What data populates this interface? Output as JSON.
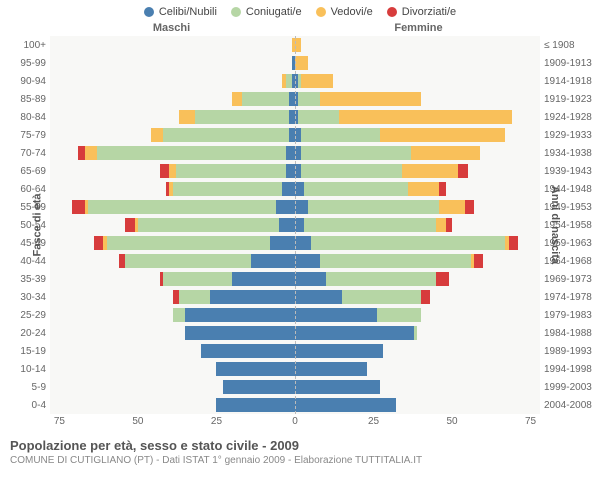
{
  "legend": [
    {
      "label": "Celibi/Nubili",
      "color": "#4a7fb0"
    },
    {
      "label": "Coniugati/e",
      "color": "#b6d6a5"
    },
    {
      "label": "Vedovi/e",
      "color": "#f9c05a"
    },
    {
      "label": "Divorziati/e",
      "color": "#d73c3c"
    }
  ],
  "headers": {
    "male": "Maschi",
    "female": "Femmine"
  },
  "y_axis_left_label": "Fasce di età",
  "y_axis_right_label": "Anni di nascita",
  "age_labels": [
    "100+",
    "95-99",
    "90-94",
    "85-89",
    "80-84",
    "75-79",
    "70-74",
    "65-69",
    "60-64",
    "55-59",
    "50-54",
    "45-49",
    "40-44",
    "35-39",
    "30-34",
    "25-29",
    "20-24",
    "15-19",
    "10-14",
    "5-9",
    "0-4"
  ],
  "birth_labels": [
    "≤ 1908",
    "1909-1913",
    "1914-1918",
    "1919-1923",
    "1924-1928",
    "1929-1933",
    "1934-1938",
    "1939-1943",
    "1944-1948",
    "1949-1953",
    "1954-1958",
    "1959-1963",
    "1964-1968",
    "1969-1973",
    "1974-1978",
    "1979-1983",
    "1984-1988",
    "1989-1993",
    "1994-1998",
    "1999-2003",
    "2004-2008"
  ],
  "x_ticks": [
    75,
    50,
    25,
    0,
    25,
    50,
    75
  ],
  "x_max": 78,
  "rows": [
    {
      "m": {
        "c": 0,
        "cg": 0,
        "v": 1,
        "d": 0
      },
      "f": {
        "c": 0,
        "cg": 0,
        "v": 2,
        "d": 0
      }
    },
    {
      "m": {
        "c": 1,
        "cg": 0,
        "v": 0,
        "d": 0
      },
      "f": {
        "c": 0,
        "cg": 0,
        "v": 4,
        "d": 0
      }
    },
    {
      "m": {
        "c": 1,
        "cg": 2,
        "v": 1,
        "d": 0
      },
      "f": {
        "c": 1,
        "cg": 1,
        "v": 10,
        "d": 0
      }
    },
    {
      "m": {
        "c": 2,
        "cg": 15,
        "v": 3,
        "d": 0
      },
      "f": {
        "c": 1,
        "cg": 7,
        "v": 32,
        "d": 0
      }
    },
    {
      "m": {
        "c": 2,
        "cg": 30,
        "v": 5,
        "d": 0
      },
      "f": {
        "c": 1,
        "cg": 13,
        "v": 55,
        "d": 0
      }
    },
    {
      "m": {
        "c": 2,
        "cg": 40,
        "v": 4,
        "d": 0
      },
      "f": {
        "c": 2,
        "cg": 25,
        "v": 40,
        "d": 0
      }
    },
    {
      "m": {
        "c": 3,
        "cg": 60,
        "v": 4,
        "d": 2
      },
      "f": {
        "c": 2,
        "cg": 35,
        "v": 22,
        "d": 0
      }
    },
    {
      "m": {
        "c": 3,
        "cg": 35,
        "v": 2,
        "d": 3
      },
      "f": {
        "c": 2,
        "cg": 32,
        "v": 18,
        "d": 3
      }
    },
    {
      "m": {
        "c": 4,
        "cg": 35,
        "v": 1,
        "d": 1
      },
      "f": {
        "c": 3,
        "cg": 33,
        "v": 10,
        "d": 2
      }
    },
    {
      "m": {
        "c": 6,
        "cg": 60,
        "v": 1,
        "d": 4
      },
      "f": {
        "c": 4,
        "cg": 42,
        "v": 8,
        "d": 3
      }
    },
    {
      "m": {
        "c": 5,
        "cg": 45,
        "v": 1,
        "d": 3
      },
      "f": {
        "c": 3,
        "cg": 42,
        "v": 3,
        "d": 2
      }
    },
    {
      "m": {
        "c": 8,
        "cg": 52,
        "v": 1,
        "d": 3
      },
      "f": {
        "c": 5,
        "cg": 62,
        "v": 1,
        "d": 3
      }
    },
    {
      "m": {
        "c": 14,
        "cg": 40,
        "v": 0,
        "d": 2
      },
      "f": {
        "c": 8,
        "cg": 48,
        "v": 1,
        "d": 3
      }
    },
    {
      "m": {
        "c": 20,
        "cg": 22,
        "v": 0,
        "d": 1
      },
      "f": {
        "c": 10,
        "cg": 35,
        "v": 0,
        "d": 4
      }
    },
    {
      "m": {
        "c": 27,
        "cg": 10,
        "v": 0,
        "d": 2
      },
      "f": {
        "c": 15,
        "cg": 25,
        "v": 0,
        "d": 3
      }
    },
    {
      "m": {
        "c": 35,
        "cg": 4,
        "v": 0,
        "d": 0
      },
      "f": {
        "c": 26,
        "cg": 14,
        "v": 0,
        "d": 0
      }
    },
    {
      "m": {
        "c": 35,
        "cg": 0,
        "v": 0,
        "d": 0
      },
      "f": {
        "c": 38,
        "cg": 1,
        "v": 0,
        "d": 0
      }
    },
    {
      "m": {
        "c": 30,
        "cg": 0,
        "v": 0,
        "d": 0
      },
      "f": {
        "c": 28,
        "cg": 0,
        "v": 0,
        "d": 0
      }
    },
    {
      "m": {
        "c": 25,
        "cg": 0,
        "v": 0,
        "d": 0
      },
      "f": {
        "c": 23,
        "cg": 0,
        "v": 0,
        "d": 0
      }
    },
    {
      "m": {
        "c": 23,
        "cg": 0,
        "v": 0,
        "d": 0
      },
      "f": {
        "c": 27,
        "cg": 0,
        "v": 0,
        "d": 0
      }
    },
    {
      "m": {
        "c": 25,
        "cg": 0,
        "v": 0,
        "d": 0
      },
      "f": {
        "c": 32,
        "cg": 0,
        "v": 0,
        "d": 0
      }
    }
  ],
  "colors": {
    "celibi": "#4a7fb0",
    "coniugati": "#b6d6a5",
    "vedovi": "#f9c05a",
    "divorziati": "#d73c3c",
    "background": "#f8f8f6",
    "grid": "#e5e5e5"
  },
  "footer": {
    "title": "Popolazione per età, sesso e stato civile - 2009",
    "subtitle": "COMUNE DI CUTIGLIANO (PT) - Dati ISTAT 1° gennaio 2009 - Elaborazione TUTTITALIA.IT"
  }
}
